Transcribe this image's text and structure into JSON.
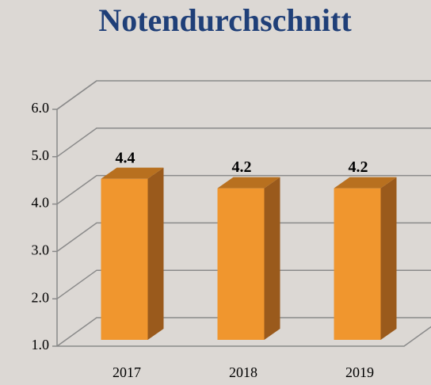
{
  "chart_data": {
    "type": "bar3d",
    "title": "Notendurchschnitt",
    "categories": [
      "2017",
      "2018",
      "2019"
    ],
    "values": [
      4.4,
      4.2,
      4.2
    ],
    "color": "#f0962e",
    "ylim": [
      1,
      6
    ],
    "yticks": [
      {
        "value": 1,
        "label": "1.0"
      },
      {
        "value": 2,
        "label": "2.0"
      },
      {
        "value": 3,
        "label": "3.0"
      },
      {
        "value": 4,
        "label": "4.0"
      },
      {
        "value": 5,
        "label": "5.0"
      },
      {
        "value": 6,
        "label": "6.0"
      }
    ],
    "grid": true
  }
}
